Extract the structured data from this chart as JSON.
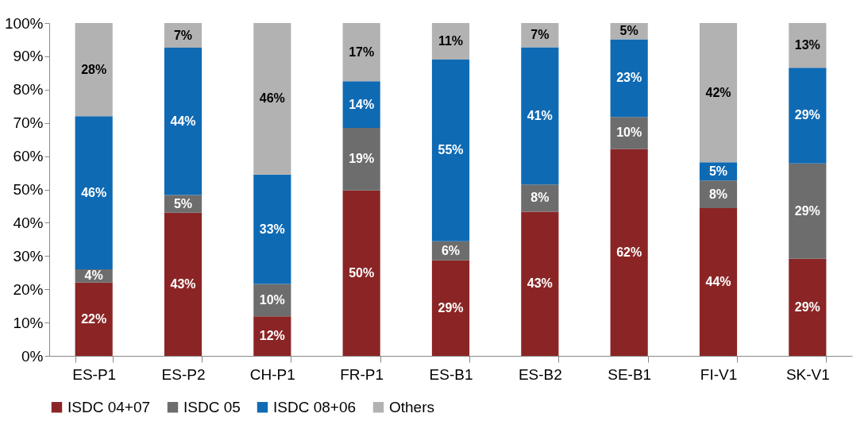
{
  "chart_data": {
    "type": "bar",
    "stacked": true,
    "categories": [
      "ES-P1",
      "ES-P2",
      "CH-P1",
      "FR-P1",
      "ES-B1",
      "ES-B2",
      "SE-B1",
      "FI-V1",
      "SK-V1"
    ],
    "series": [
      {
        "name": "ISDC 04+07",
        "color": "#8b2525",
        "values": [
          22,
          43,
          11.9,
          49.7,
          28.7,
          43.3,
          62.2,
          44.4,
          29.2
        ],
        "value_labels": [
          "22%",
          "43%",
          "12%",
          "50%",
          "29%",
          "43%",
          "62%",
          "44%",
          "29%"
        ]
      },
      {
        "name": "ISDC 05",
        "color": "#6d6d6d",
        "values": [
          4,
          5.3,
          9.7,
          18.8,
          5.7,
          8.2,
          9.6,
          8.3,
          28.6
        ],
        "value_labels": [
          "4%",
          "5%",
          "10%",
          "19%",
          "6%",
          "8%",
          "10%",
          "8%",
          "29%"
        ]
      },
      {
        "name": "ISDC 08+06",
        "color": "#0f6ab4",
        "values": [
          46,
          44.3,
          32.9,
          14,
          54.6,
          41.2,
          23.3,
          5.5,
          28.8
        ],
        "value_labels": [
          "46%",
          "44%",
          "33%",
          "14%",
          "55%",
          "41%",
          "23%",
          "5%",
          "29%"
        ]
      },
      {
        "name": "Others",
        "color": "#b2b2b2",
        "values": [
          28,
          7.4,
          45.5,
          17.5,
          11,
          7.3,
          4.9,
          41.8,
          13.4
        ],
        "value_labels": [
          "28%",
          "7%",
          "46%",
          "17%",
          "11%",
          "7%",
          "5%",
          "42%",
          "13%"
        ]
      }
    ],
    "ylim": [
      0,
      100
    ],
    "yticks": [
      {
        "value": 0,
        "label": "0%"
      },
      {
        "value": 10,
        "label": "10%"
      },
      {
        "value": 20,
        "label": "20%"
      },
      {
        "value": 30,
        "label": "30%"
      },
      {
        "value": 40,
        "label": "40%"
      },
      {
        "value": 50,
        "label": "50%"
      },
      {
        "value": 60,
        "label": "60%"
      },
      {
        "value": 70,
        "label": "70%"
      },
      {
        "value": 80,
        "label": "80%"
      },
      {
        "value": 90,
        "label": "90%"
      },
      {
        "value": 100,
        "label": "100%"
      }
    ],
    "grid": false,
    "legend": "bottom"
  }
}
